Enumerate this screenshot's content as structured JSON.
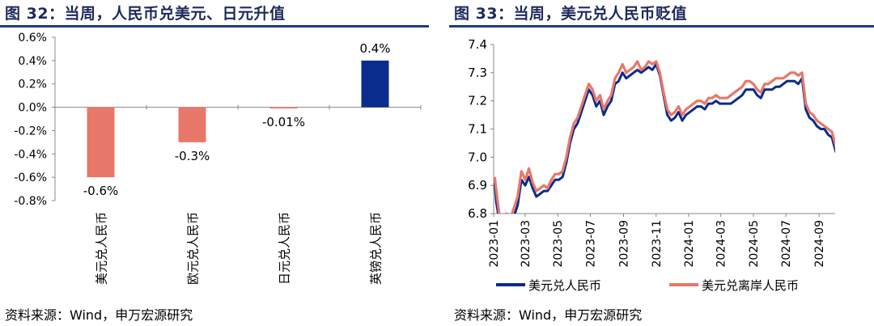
{
  "left": {
    "title": "图 32：当周，人民币兑美元、日元升值",
    "source": "资料来源：Wind，申万宏源研究",
    "chart_data": {
      "type": "bar",
      "categories": [
        "美元兑人民币",
        "欧元兑人民币",
        "日元兑人民币",
        "英镑兑人民币"
      ],
      "values": [
        -0.6,
        -0.3,
        -0.01,
        0.4
      ],
      "data_labels": [
        "-0.6%",
        "-0.3%",
        "-0.01%",
        "0.4%"
      ],
      "bar_colors": [
        "#e8786a",
        "#e8786a",
        "#e8786a",
        "#0a2c8c"
      ],
      "ylim": [
        -0.8,
        0.6
      ],
      "yticks": [
        0.6,
        0.4,
        0.2,
        0.0,
        -0.2,
        -0.4,
        -0.6,
        -0.8
      ],
      "ytick_labels": [
        "0.6%",
        "0.4%",
        "0.2%",
        "0.0%",
        "-0.2%",
        "-0.4%",
        "-0.6%",
        "-0.8%"
      ],
      "grid": false
    }
  },
  "right": {
    "title": "图 33：当周，美元兑人民币贬值",
    "source": "资料来源：Wind，申万宏源研究",
    "chart_data": {
      "type": "line",
      "x_start": "2023-01",
      "x_end": "2024-10",
      "xtick_labels": [
        "2023-01",
        "2023-03",
        "2023-05",
        "2023-07",
        "2023-09",
        "2023-11",
        "2024-01",
        "2024-03",
        "2024-05",
        "2024-07",
        "2024-09"
      ],
      "ylim": [
        6.8,
        7.4
      ],
      "yticks": [
        7.4,
        7.3,
        7.2,
        7.1,
        7.0,
        6.9,
        6.8
      ],
      "ytick_labels": [
        "7.4",
        "7.3",
        "7.2",
        "7.1",
        "7.0",
        "6.9",
        "6.8"
      ],
      "grid": false,
      "legend_position": "bottom",
      "series": [
        {
          "name": "美元兑人民币",
          "color": "#0a2c8c",
          "x": [
            "2023-01-03",
            "2023-01-06",
            "2023-01-12",
            "2023-01-18",
            "2023-01-25",
            "2023-02-01",
            "2023-02-08",
            "2023-02-15",
            "2023-02-22",
            "2023-03-01",
            "2023-03-08",
            "2023-03-15",
            "2023-03-22",
            "2023-03-29",
            "2023-04-05",
            "2023-04-12",
            "2023-04-19",
            "2023-04-26",
            "2023-05-03",
            "2023-05-10",
            "2023-05-17",
            "2023-05-24",
            "2023-05-31",
            "2023-06-07",
            "2023-06-14",
            "2023-06-21",
            "2023-06-28",
            "2023-07-05",
            "2023-07-12",
            "2023-07-19",
            "2023-07-26",
            "2023-08-02",
            "2023-08-09",
            "2023-08-16",
            "2023-08-23",
            "2023-08-30",
            "2023-09-06",
            "2023-09-13",
            "2023-09-20",
            "2023-09-27",
            "2023-10-04",
            "2023-10-11",
            "2023-10-18",
            "2023-10-25",
            "2023-11-01",
            "2023-11-08",
            "2023-11-15",
            "2023-11-22",
            "2023-11-29",
            "2023-12-06",
            "2023-12-13",
            "2023-12-20",
            "2023-12-27",
            "2024-01-03",
            "2024-01-10",
            "2024-01-17",
            "2024-01-24",
            "2024-01-31",
            "2024-02-07",
            "2024-02-14",
            "2024-02-21",
            "2024-02-28",
            "2024-03-06",
            "2024-03-13",
            "2024-03-20",
            "2024-03-27",
            "2024-04-03",
            "2024-04-10",
            "2024-04-17",
            "2024-04-24",
            "2024-05-01",
            "2024-05-08",
            "2024-05-15",
            "2024-05-22",
            "2024-05-29",
            "2024-06-05",
            "2024-06-12",
            "2024-06-19",
            "2024-06-26",
            "2024-07-03",
            "2024-07-10",
            "2024-07-17",
            "2024-07-24",
            "2024-07-31",
            "2024-08-07",
            "2024-08-14",
            "2024-08-21",
            "2024-08-28",
            "2024-09-04",
            "2024-09-11",
            "2024-09-18",
            "2024-09-25",
            "2024-10-02",
            "2024-10-07"
          ],
          "values": [
            6.91,
            6.84,
            6.77,
            6.77,
            6.78,
            6.76,
            6.79,
            6.83,
            6.92,
            6.9,
            6.93,
            6.89,
            6.86,
            6.87,
            6.88,
            6.88,
            6.9,
            6.92,
            6.92,
            6.93,
            6.98,
            7.05,
            7.1,
            7.12,
            7.16,
            7.2,
            7.24,
            7.22,
            7.18,
            7.2,
            7.15,
            7.18,
            7.2,
            7.26,
            7.27,
            7.3,
            7.28,
            7.29,
            7.3,
            7.31,
            7.3,
            7.31,
            7.32,
            7.31,
            7.33,
            7.29,
            7.22,
            7.15,
            7.13,
            7.14,
            7.16,
            7.13,
            7.15,
            7.16,
            7.17,
            7.18,
            7.18,
            7.17,
            7.19,
            7.19,
            7.2,
            7.19,
            7.19,
            7.19,
            7.19,
            7.2,
            7.21,
            7.22,
            7.24,
            7.24,
            7.24,
            7.22,
            7.21,
            7.24,
            7.24,
            7.24,
            7.25,
            7.25,
            7.26,
            7.27,
            7.27,
            7.27,
            7.26,
            7.28,
            7.17,
            7.14,
            7.13,
            7.11,
            7.1,
            7.1,
            7.08,
            7.07,
            7.02,
            7.0
          ]
        },
        {
          "name": "美元兑离岸人民币",
          "color": "#e8786a",
          "x": [
            "2023-01-03",
            "2023-01-06",
            "2023-01-12",
            "2023-01-18",
            "2023-01-25",
            "2023-02-01",
            "2023-02-08",
            "2023-02-15",
            "2023-02-22",
            "2023-03-01",
            "2023-03-08",
            "2023-03-15",
            "2023-03-22",
            "2023-03-29",
            "2023-04-05",
            "2023-04-12",
            "2023-04-19",
            "2023-04-26",
            "2023-05-03",
            "2023-05-10",
            "2023-05-17",
            "2023-05-24",
            "2023-05-31",
            "2023-06-07",
            "2023-06-14",
            "2023-06-21",
            "2023-06-28",
            "2023-07-05",
            "2023-07-12",
            "2023-07-19",
            "2023-07-26",
            "2023-08-02",
            "2023-08-09",
            "2023-08-16",
            "2023-08-23",
            "2023-08-30",
            "2023-09-06",
            "2023-09-13",
            "2023-09-20",
            "2023-09-27",
            "2023-10-04",
            "2023-10-11",
            "2023-10-18",
            "2023-10-25",
            "2023-11-01",
            "2023-11-08",
            "2023-11-15",
            "2023-11-22",
            "2023-11-29",
            "2023-12-06",
            "2023-12-13",
            "2023-12-20",
            "2023-12-27",
            "2024-01-03",
            "2024-01-10",
            "2024-01-17",
            "2024-01-24",
            "2024-01-31",
            "2024-02-07",
            "2024-02-14",
            "2024-02-21",
            "2024-02-28",
            "2024-03-06",
            "2024-03-13",
            "2024-03-20",
            "2024-03-27",
            "2024-04-03",
            "2024-04-10",
            "2024-04-17",
            "2024-04-24",
            "2024-05-01",
            "2024-05-08",
            "2024-05-15",
            "2024-05-22",
            "2024-05-29",
            "2024-06-05",
            "2024-06-12",
            "2024-06-19",
            "2024-06-26",
            "2024-07-03",
            "2024-07-10",
            "2024-07-17",
            "2024-07-24",
            "2024-07-31",
            "2024-08-07",
            "2024-08-14",
            "2024-08-21",
            "2024-08-28",
            "2024-09-04",
            "2024-09-11",
            "2024-09-18",
            "2024-09-25",
            "2024-10-02",
            "2024-10-07"
          ],
          "values": [
            6.93,
            6.88,
            6.79,
            6.78,
            6.8,
            6.78,
            6.82,
            6.86,
            6.95,
            6.92,
            6.96,
            6.91,
            6.88,
            6.89,
            6.9,
            6.89,
            6.92,
            6.94,
            6.94,
            6.95,
            7.0,
            7.07,
            7.12,
            7.14,
            7.18,
            7.22,
            7.26,
            7.24,
            7.2,
            7.22,
            7.17,
            7.2,
            7.22,
            7.28,
            7.3,
            7.33,
            7.3,
            7.31,
            7.32,
            7.34,
            7.31,
            7.32,
            7.34,
            7.33,
            7.34,
            7.3,
            7.23,
            7.17,
            7.15,
            7.16,
            7.18,
            7.15,
            7.17,
            7.18,
            7.19,
            7.2,
            7.2,
            7.19,
            7.21,
            7.21,
            7.22,
            7.21,
            7.21,
            7.21,
            7.22,
            7.23,
            7.24,
            7.25,
            7.27,
            7.27,
            7.26,
            7.24,
            7.23,
            7.26,
            7.26,
            7.27,
            7.28,
            7.28,
            7.28,
            7.29,
            7.3,
            7.3,
            7.29,
            7.3,
            7.19,
            7.16,
            7.15,
            7.13,
            7.12,
            7.11,
            7.1,
            7.09,
            7.04,
            6.98
          ]
        }
      ]
    }
  }
}
